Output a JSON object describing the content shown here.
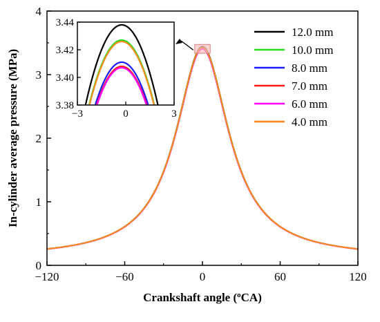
{
  "chart_data": [
    {
      "type": "line",
      "xlabel": "Crankshaft angle (",
      "xlabel_sup": "o",
      "xlabel_tail": "CA)",
      "ylabel": "In-cylinder average pressure (MPa)",
      "xlim": [
        -120,
        120
      ],
      "ylim": [
        0,
        4
      ],
      "xticks": [
        -120,
        -60,
        0,
        60,
        120
      ],
      "yticks": [
        0,
        1,
        2,
        3,
        4
      ],
      "xtick_labels": [
        "−120",
        "−60",
        "0",
        "60",
        "120"
      ],
      "ytick_labels": [
        "0",
        "1",
        "2",
        "3",
        "4"
      ],
      "legend_position": "top-right",
      "grid": false,
      "curve_shape": {
        "peak_x": 0,
        "base": 0.12,
        "half_width": 25
      },
      "series": [
        {
          "name": "12.0 mm",
          "color": "#000000",
          "peak": 3.438
        },
        {
          "name": "10.0 mm",
          "color": "#22dd22",
          "peak": 3.427
        },
        {
          "name": "8.0 mm",
          "color": "#1a1aff",
          "peak": 3.411
        },
        {
          "name": "7.0 mm",
          "color": "#ff1a1a",
          "peak": 3.408
        },
        {
          "name": "6.0 mm",
          "color": "#ff00ff",
          "peak": 3.407
        },
        {
          "name": "4.0 mm",
          "color": "#ff8c1a",
          "peak": 3.426
        }
      ]
    },
    {
      "type": "line",
      "role": "inset zoom of the peak",
      "xlim": [
        -3,
        3
      ],
      "ylim": [
        3.38,
        3.44
      ],
      "xticks": [
        -3,
        0,
        3
      ],
      "yticks": [
        3.38,
        3.4,
        3.42,
        3.44
      ],
      "xtick_labels": [
        "−3",
        "0",
        "3"
      ],
      "ytick_labels": [
        "3.38",
        "3.40",
        "3.42",
        "3.44"
      ],
      "peak_x": -0.25,
      "curvature": 0.0115,
      "highlight_region": {
        "x": [
          -6,
          6
        ],
        "y": [
          3.335,
          3.475
        ],
        "color": "#f4b8b8"
      }
    }
  ]
}
